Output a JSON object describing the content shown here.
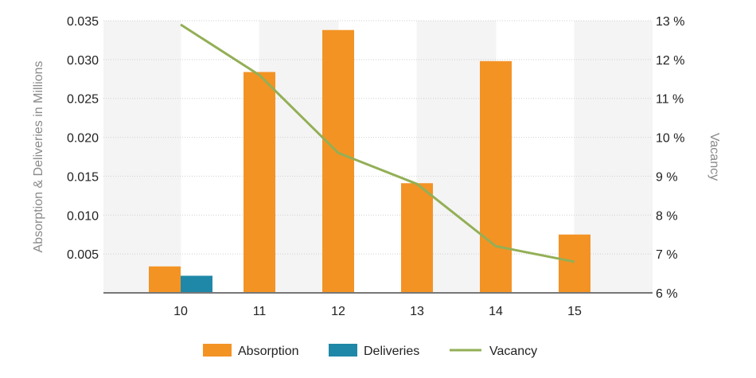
{
  "chart_data": {
    "type": "bar",
    "categories": [
      "10",
      "11",
      "12",
      "13",
      "14",
      "15"
    ],
    "series": [
      {
        "name": "Absorption",
        "type": "bar",
        "axis": "left",
        "color": "#F39324",
        "values": [
          0.0034,
          0.0284,
          0.0338,
          0.0141,
          0.0298,
          0.0075
        ]
      },
      {
        "name": "Deliveries",
        "type": "bar",
        "axis": "left",
        "color": "#1F88A8",
        "values": [
          0.0022,
          null,
          null,
          null,
          null,
          null
        ]
      },
      {
        "name": "Vacancy",
        "type": "line",
        "axis": "right",
        "color": "#93AF56",
        "values": [
          12.9,
          11.6,
          9.6,
          8.8,
          7.2,
          6.8
        ]
      }
    ],
    "ylabel": "Absorption & Deliveries in Millions",
    "y2label": "Vacancy",
    "ylim": [
      0,
      0.035
    ],
    "y_ticks": [
      "0.005",
      "0.010",
      "0.015",
      "0.020",
      "0.025",
      "0.030",
      "0.035"
    ],
    "y2lim": [
      6,
      13
    ],
    "y2_ticks": [
      "6 %",
      "7 %",
      "8 %",
      "9 %",
      "10 %",
      "11 %",
      "12 %",
      "13 %"
    ],
    "grid": true,
    "legend_position": "bottom-center"
  }
}
